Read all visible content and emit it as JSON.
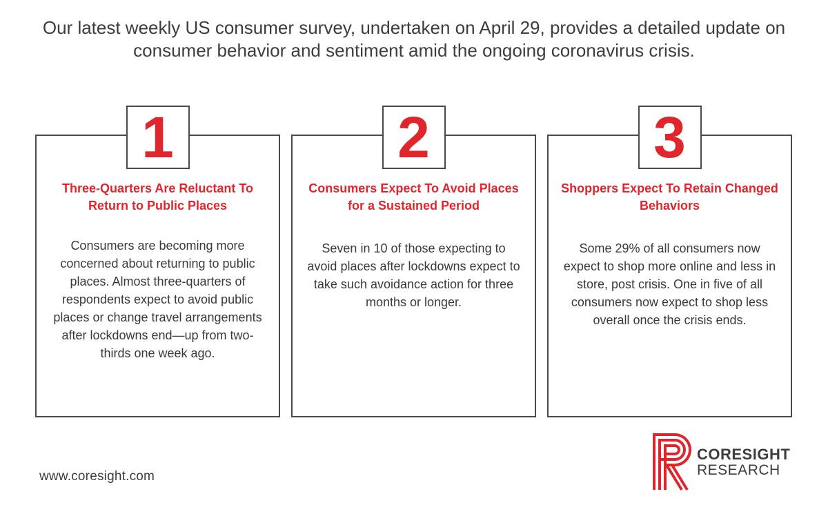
{
  "headline": "Our latest weekly US consumer survey, undertaken on April 29, provides a detailed update on consumer behavior and sentiment amid the ongoing coronavirus crisis.",
  "cards": [
    {
      "number": "1",
      "title": "Three-Quarters Are Reluctant To Return to Public Places",
      "body": "Consumers are becoming more concerned about returning to public places. Almost three-quarters of respondents expect to avoid public places or change travel arrangements after lockdowns end—up from two-thirds one week ago."
    },
    {
      "number": "2",
      "title": "Consumers Expect To Avoid Places for a Sustained Period",
      "body": "Seven in 10 of those expecting to avoid places after lockdowns expect to take such avoidance action for three months or longer."
    },
    {
      "number": "3",
      "title": "Shoppers Expect To Retain Changed Behaviors",
      "body": "Some 29% of all consumers now expect to shop more online and less in store, post crisis. One in five of all consumers now expect to shop less overall once the crisis ends."
    }
  ],
  "footer": {
    "url": "www.coresight.com"
  },
  "logo": {
    "line1": "CORESIGHT",
    "line2": "RESEARCH",
    "accent_color": "#e0262d"
  },
  "colors": {
    "accent": "#e0262d",
    "text": "#3d3d3d",
    "border": "#4a4a4a"
  }
}
